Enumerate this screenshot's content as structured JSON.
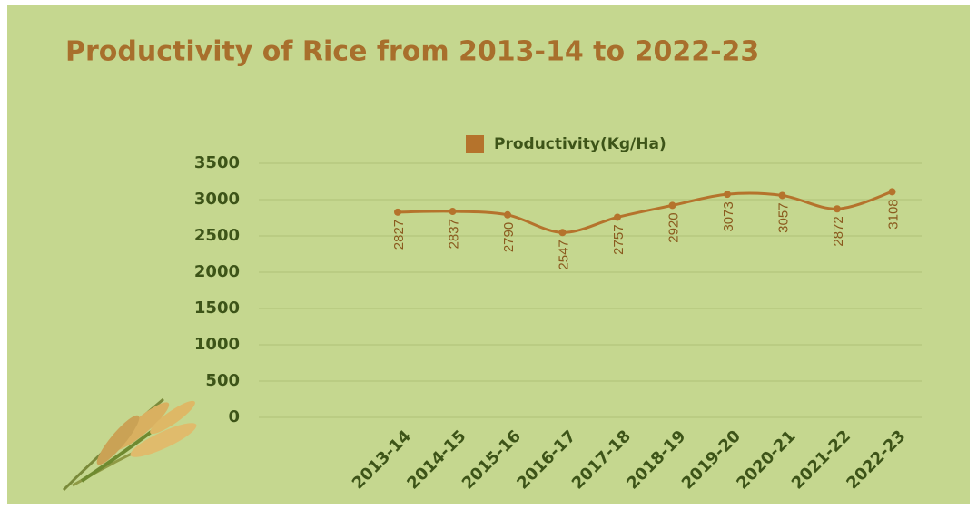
{
  "chart_data": {
    "type": "line",
    "title": "Productivity of  Rice from  2013-14 to 2022-23",
    "categories": [
      "2013-14",
      "2014-15",
      "2015-16",
      "2016-17",
      "2017-18",
      "2018-19",
      "2019-20",
      "2020-21",
      "2021-22",
      "2022-23"
    ],
    "series": [
      {
        "name": "Productivity(Kg/Ha)",
        "color": "#b5732c",
        "values": [
          2827,
          2837,
          2790,
          2547,
          2757,
          2920,
          3073,
          3057,
          2872,
          3108
        ]
      }
    ],
    "ylim": [
      0,
      3500
    ],
    "yticks": [
      0,
      500,
      1000,
      1500,
      2000,
      2500,
      3000,
      3500
    ],
    "grid": true,
    "legend": "top"
  }
}
